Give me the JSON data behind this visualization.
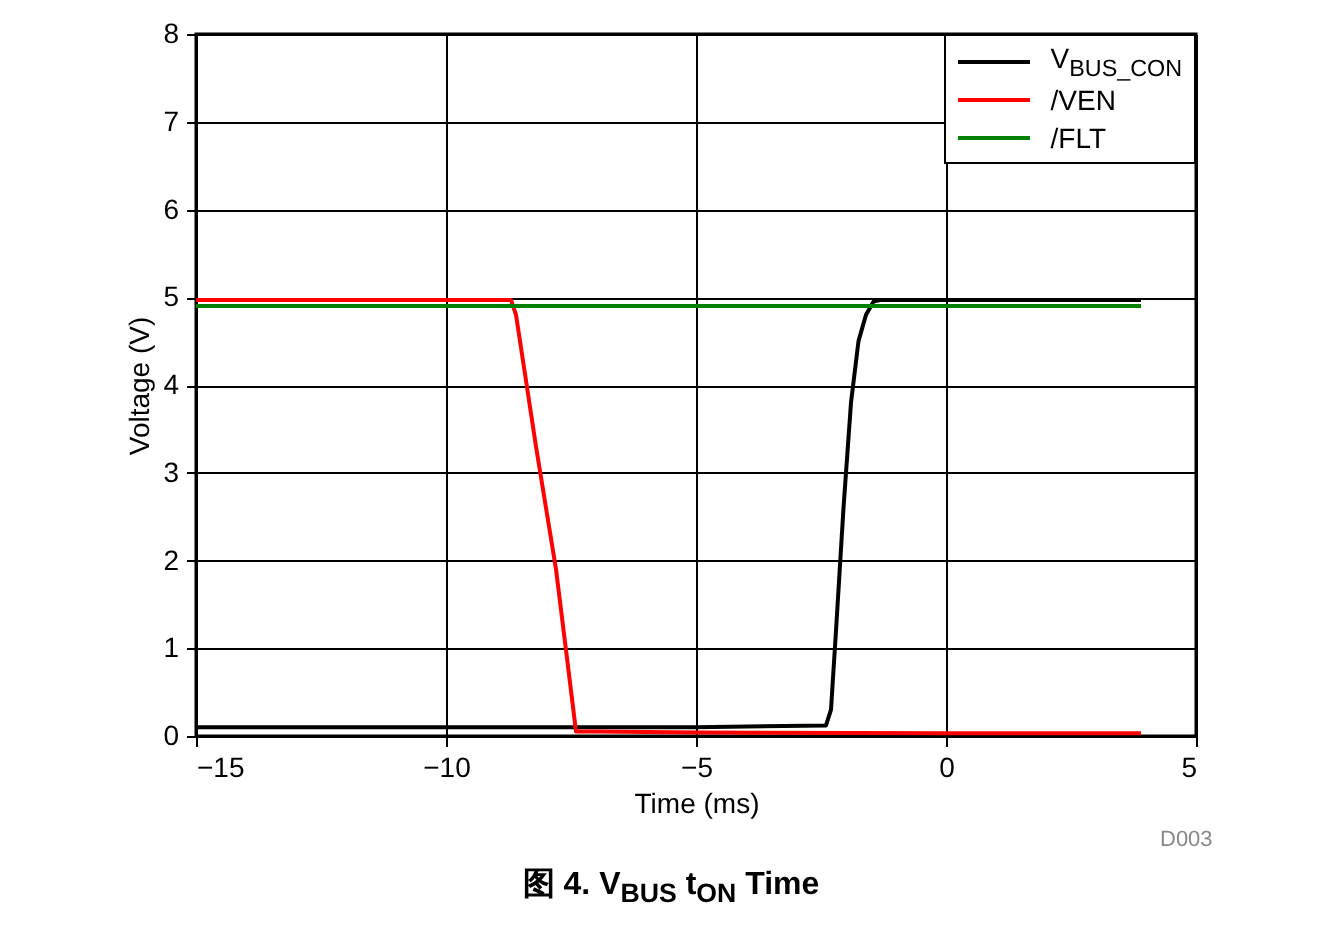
{
  "chart_data": {
    "type": "line",
    "title": "图 4. V$_{BUS}$ t$_{ON}$ Time",
    "xlabel": "Time (ms)",
    "ylabel": "Voltage (V)",
    "xlim": [
      -15,
      5
    ],
    "xticks": [
      -15,
      -10,
      -5,
      0,
      5
    ],
    "ylim": [
      0,
      8
    ],
    "yticks": [
      0,
      1,
      2,
      3,
      4,
      5,
      6,
      7,
      8
    ],
    "grid": true,
    "legend": "top right",
    "line_style": "solid",
    "annotations": [
      "D003"
    ],
    "series": [
      {
        "name": "V$_{BUS_CON}$",
        "color": "#000000",
        "x": [
          -15,
          -10,
          -5,
          -2.4,
          -2.3,
          -2.2,
          -2.05,
          -1.9,
          -1.75,
          -1.6,
          -1.45,
          -1.3,
          0,
          2,
          3.9
        ],
        "values": [
          0.1,
          0.1,
          0.1,
          0.12,
          0.3,
          1.2,
          2.6,
          3.8,
          4.5,
          4.8,
          4.95,
          4.97,
          4.97,
          4.97,
          4.97
        ]
      },
      {
        "name": "/VEN",
        "color": "#ff0000",
        "x": [
          -15,
          -10,
          -8.7,
          -8.6,
          -8.2,
          -7.8,
          -7.55,
          -7.4,
          -7,
          -5,
          0,
          3.9
        ],
        "values": [
          4.97,
          4.97,
          4.97,
          4.8,
          3.3,
          1.9,
          0.75,
          0.05,
          0.05,
          0.04,
          0.03,
          0.03
        ]
      },
      {
        "name": "/FLT",
        "color": "#008000",
        "x": [
          -15,
          -10,
          -5,
          0,
          3.9
        ],
        "values": [
          4.9,
          4.9,
          4.9,
          4.9,
          4.9
        ]
      }
    ]
  }
}
